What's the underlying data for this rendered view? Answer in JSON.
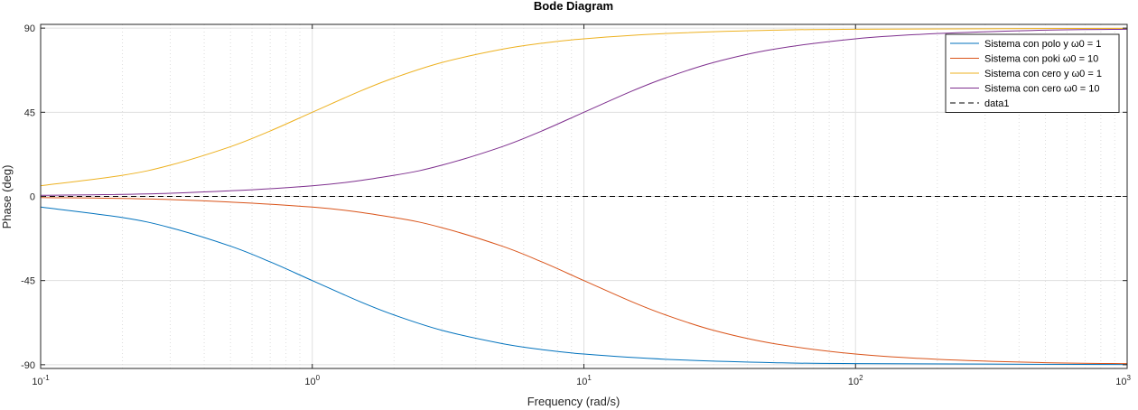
{
  "chart_data": {
    "type": "line",
    "title": "Bode Diagram",
    "xlabel": "Frequency  (rad/s)",
    "ylabel": "Phase (deg)",
    "xscale": "log",
    "xlim": [
      0.1,
      1000
    ],
    "ylim": [
      -92,
      92
    ],
    "yticks": [
      {
        "value": 90,
        "label": "90"
      },
      {
        "value": 45,
        "label": "45"
      },
      {
        "value": 0,
        "label": "0"
      },
      {
        "value": -45,
        "label": "-45"
      },
      {
        "value": -90,
        "label": "-90"
      }
    ],
    "xticks": [
      {
        "value": 0.1,
        "base": "10",
        "exp": "-1"
      },
      {
        "value": 1,
        "base": "10",
        "exp": "0"
      },
      {
        "value": 10,
        "base": "10",
        "exp": "1"
      },
      {
        "value": 100,
        "base": "10",
        "exp": "2"
      },
      {
        "value": 1000,
        "base": "10",
        "exp": "3"
      }
    ],
    "grid": true,
    "minor_grid": true,
    "legend_position": "top-right",
    "series": [
      {
        "name": "Sistema con polo y ω0 = 1",
        "color": "#0072BD",
        "style": "solid",
        "x": [
          0.1,
          0.2,
          0.3,
          0.5,
          0.7,
          1,
          1.5,
          2,
          3,
          5,
          7,
          10,
          20,
          50,
          100,
          1000
        ],
        "y": [
          -5.7,
          -11.3,
          -16.7,
          -26.6,
          -35.0,
          -45.0,
          -56.3,
          -63.4,
          -71.6,
          -78.7,
          -81.9,
          -84.3,
          -87.1,
          -88.9,
          -89.4,
          -89.9
        ]
      },
      {
        "name": "Sistema con poki ω0 = 10",
        "color": "#D95319",
        "style": "solid",
        "x": [
          0.1,
          0.3,
          1,
          2,
          3,
          5,
          7,
          10,
          15,
          20,
          30,
          50,
          100,
          200,
          500,
          1000
        ],
        "y": [
          -0.6,
          -1.7,
          -5.7,
          -11.3,
          -16.7,
          -26.6,
          -35.0,
          -45.0,
          -56.3,
          -63.4,
          -71.6,
          -78.7,
          -84.3,
          -87.1,
          -88.9,
          -89.4
        ]
      },
      {
        "name": "Sistema con cero y ω0 = 1",
        "color": "#EDB120",
        "style": "solid",
        "x": [
          0.1,
          0.2,
          0.3,
          0.5,
          0.7,
          1,
          1.5,
          2,
          3,
          5,
          7,
          10,
          20,
          50,
          100,
          1000
        ],
        "y": [
          5.7,
          11.3,
          16.7,
          26.6,
          35.0,
          45.0,
          56.3,
          63.4,
          71.6,
          78.7,
          81.9,
          84.3,
          87.1,
          88.9,
          89.4,
          89.9
        ]
      },
      {
        "name": "Sistema con cero ω0 = 10",
        "color": "#7E2F8E",
        "style": "solid",
        "x": [
          0.1,
          0.3,
          1,
          2,
          3,
          5,
          7,
          10,
          15,
          20,
          30,
          50,
          100,
          200,
          500,
          1000
        ],
        "y": [
          0.6,
          1.7,
          5.7,
          11.3,
          16.7,
          26.6,
          35.0,
          45.0,
          56.3,
          63.4,
          71.6,
          78.7,
          84.3,
          87.1,
          88.9,
          89.4
        ]
      },
      {
        "name": "data1",
        "color": "#000000",
        "style": "dashed",
        "x": [
          0.1,
          1000
        ],
        "y": [
          0,
          0
        ]
      }
    ]
  }
}
